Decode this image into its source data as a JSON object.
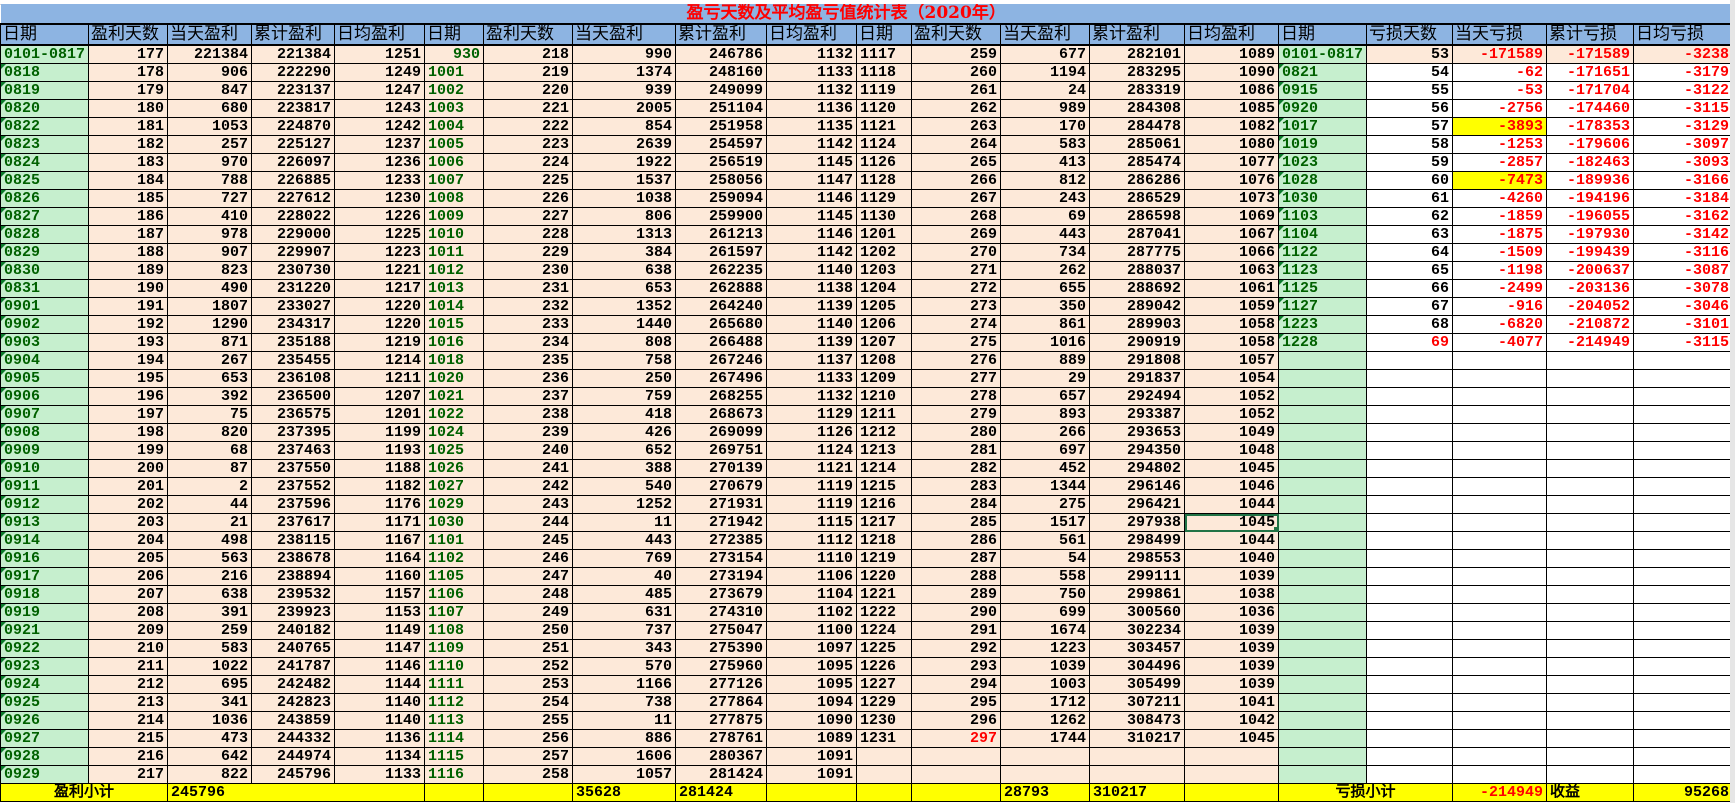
{
  "title": "盈亏天数及平均盈亏值统计表（2020年）",
  "headers": [
    "日期",
    "盈利天数",
    "当天盈利",
    "累计盈利",
    "日均盈利",
    "日期",
    "盈利天数",
    "当天盈利",
    "累计盈利",
    "日均盈利",
    "日期",
    "盈利天数",
    "当天盈利",
    "累计盈利",
    "日均盈利",
    "日期",
    "亏损天数",
    "当天亏损",
    "累计亏损",
    "日均亏损"
  ],
  "profit_block_1": [
    [
      "0101-0817",
      "177",
      "221384",
      "221384",
      "1251"
    ],
    [
      "0818",
      "178",
      "906",
      "222290",
      "1249"
    ],
    [
      "0819",
      "179",
      "847",
      "223137",
      "1247"
    ],
    [
      "0820",
      "180",
      "680",
      "223817",
      "1243"
    ],
    [
      "0822",
      "181",
      "1053",
      "224870",
      "1242"
    ],
    [
      "0823",
      "182",
      "257",
      "225127",
      "1237"
    ],
    [
      "0824",
      "183",
      "970",
      "226097",
      "1236"
    ],
    [
      "0825",
      "184",
      "788",
      "226885",
      "1233"
    ],
    [
      "0826",
      "185",
      "727",
      "227612",
      "1230"
    ],
    [
      "0827",
      "186",
      "410",
      "228022",
      "1226"
    ],
    [
      "0828",
      "187",
      "978",
      "229000",
      "1225"
    ],
    [
      "0829",
      "188",
      "907",
      "229907",
      "1223"
    ],
    [
      "0830",
      "189",
      "823",
      "230730",
      "1221"
    ],
    [
      "0831",
      "190",
      "490",
      "231220",
      "1217"
    ],
    [
      "0901",
      "191",
      "1807",
      "233027",
      "1220"
    ],
    [
      "0902",
      "192",
      "1290",
      "234317",
      "1220"
    ],
    [
      "0903",
      "193",
      "871",
      "235188",
      "1219"
    ],
    [
      "0904",
      "194",
      "267",
      "235455",
      "1214"
    ],
    [
      "0905",
      "195",
      "653",
      "236108",
      "1211"
    ],
    [
      "0906",
      "196",
      "392",
      "236500",
      "1207"
    ],
    [
      "0907",
      "197",
      "75",
      "236575",
      "1201"
    ],
    [
      "0908",
      "198",
      "820",
      "237395",
      "1199"
    ],
    [
      "0909",
      "199",
      "68",
      "237463",
      "1193"
    ],
    [
      "0910",
      "200",
      "87",
      "237550",
      "1188"
    ],
    [
      "0911",
      "201",
      "2",
      "237552",
      "1182"
    ],
    [
      "0912",
      "202",
      "44",
      "237596",
      "1176"
    ],
    [
      "0913",
      "203",
      "21",
      "237617",
      "1171"
    ],
    [
      "0914",
      "204",
      "498",
      "238115",
      "1167"
    ],
    [
      "0916",
      "205",
      "563",
      "238678",
      "1164"
    ],
    [
      "0917",
      "206",
      "216",
      "238894",
      "1160"
    ],
    [
      "0918",
      "207",
      "638",
      "239532",
      "1157"
    ],
    [
      "0919",
      "208",
      "391",
      "239923",
      "1153"
    ],
    [
      "0921",
      "209",
      "259",
      "240182",
      "1149"
    ],
    [
      "0922",
      "210",
      "583",
      "240765",
      "1147"
    ],
    [
      "0923",
      "211",
      "1022",
      "241787",
      "1146"
    ],
    [
      "0924",
      "212",
      "695",
      "242482",
      "1144"
    ],
    [
      "0925",
      "213",
      "341",
      "242823",
      "1140"
    ],
    [
      "0926",
      "214",
      "1036",
      "243859",
      "1140"
    ],
    [
      "0927",
      "215",
      "473",
      "244332",
      "1136"
    ],
    [
      "0928",
      "216",
      "642",
      "244974",
      "1134"
    ],
    [
      "0929",
      "217",
      "822",
      "245796",
      "1133"
    ]
  ],
  "profit_block_2": [
    [
      "930",
      "218",
      "990",
      "246786",
      "1132"
    ],
    [
      "1001",
      "219",
      "1374",
      "248160",
      "1133"
    ],
    [
      "1002",
      "220",
      "939",
      "249099",
      "1132"
    ],
    [
      "1003",
      "221",
      "2005",
      "251104",
      "1136"
    ],
    [
      "1004",
      "222",
      "854",
      "251958",
      "1135"
    ],
    [
      "1005",
      "223",
      "2639",
      "254597",
      "1142"
    ],
    [
      "1006",
      "224",
      "1922",
      "256519",
      "1145"
    ],
    [
      "1007",
      "225",
      "1537",
      "258056",
      "1147"
    ],
    [
      "1008",
      "226",
      "1038",
      "259094",
      "1146"
    ],
    [
      "1009",
      "227",
      "806",
      "259900",
      "1145"
    ],
    [
      "1010",
      "228",
      "1313",
      "261213",
      "1146"
    ],
    [
      "1011",
      "229",
      "384",
      "261597",
      "1142"
    ],
    [
      "1012",
      "230",
      "638",
      "262235",
      "1140"
    ],
    [
      "1013",
      "231",
      "653",
      "262888",
      "1138"
    ],
    [
      "1014",
      "232",
      "1352",
      "264240",
      "1139"
    ],
    [
      "1015",
      "233",
      "1440",
      "265680",
      "1140"
    ],
    [
      "1016",
      "234",
      "808",
      "266488",
      "1139"
    ],
    [
      "1018",
      "235",
      "758",
      "267246",
      "1137"
    ],
    [
      "1020",
      "236",
      "250",
      "267496",
      "1133"
    ],
    [
      "1021",
      "237",
      "759",
      "268255",
      "1132"
    ],
    [
      "1022",
      "238",
      "418",
      "268673",
      "1129"
    ],
    [
      "1024",
      "239",
      "426",
      "269099",
      "1126"
    ],
    [
      "1025",
      "240",
      "652",
      "269751",
      "1124"
    ],
    [
      "1026",
      "241",
      "388",
      "270139",
      "1121"
    ],
    [
      "1027",
      "242",
      "540",
      "270679",
      "1119"
    ],
    [
      "1029",
      "243",
      "1252",
      "271931",
      "1119"
    ],
    [
      "1030",
      "244",
      "11",
      "271942",
      "1115"
    ],
    [
      "1101",
      "245",
      "443",
      "272385",
      "1112"
    ],
    [
      "1102",
      "246",
      "769",
      "273154",
      "1110"
    ],
    [
      "1105",
      "247",
      "40",
      "273194",
      "1106"
    ],
    [
      "1106",
      "248",
      "485",
      "273679",
      "1104"
    ],
    [
      "1107",
      "249",
      "631",
      "274310",
      "1102"
    ],
    [
      "1108",
      "250",
      "737",
      "275047",
      "1100"
    ],
    [
      "1109",
      "251",
      "343",
      "275390",
      "1097"
    ],
    [
      "1110",
      "252",
      "570",
      "275960",
      "1095"
    ],
    [
      "1111",
      "253",
      "1166",
      "277126",
      "1095"
    ],
    [
      "1112",
      "254",
      "738",
      "277864",
      "1094"
    ],
    [
      "1113",
      "255",
      "11",
      "277875",
      "1090"
    ],
    [
      "1114",
      "256",
      "886",
      "278761",
      "1089"
    ],
    [
      "1115",
      "257",
      "1606",
      "280367",
      "1091"
    ],
    [
      "1116",
      "258",
      "1057",
      "281424",
      "1091"
    ]
  ],
  "profit_block_3": [
    [
      "1117",
      "259",
      "677",
      "282101",
      "1089"
    ],
    [
      "1118",
      "260",
      "1194",
      "283295",
      "1090"
    ],
    [
      "1119",
      "261",
      "24",
      "283319",
      "1086"
    ],
    [
      "1120",
      "262",
      "989",
      "284308",
      "1085"
    ],
    [
      "1121",
      "263",
      "170",
      "284478",
      "1082"
    ],
    [
      "1124",
      "264",
      "583",
      "285061",
      "1080"
    ],
    [
      "1126",
      "265",
      "413",
      "285474",
      "1077"
    ],
    [
      "1128",
      "266",
      "812",
      "286286",
      "1076"
    ],
    [
      "1129",
      "267",
      "243",
      "286529",
      "1073"
    ],
    [
      "1130",
      "268",
      "69",
      "286598",
      "1069"
    ],
    [
      "1201",
      "269",
      "443",
      "287041",
      "1067"
    ],
    [
      "1202",
      "270",
      "734",
      "287775",
      "1066"
    ],
    [
      "1203",
      "271",
      "262",
      "288037",
      "1063"
    ],
    [
      "1204",
      "272",
      "655",
      "288692",
      "1061"
    ],
    [
      "1205",
      "273",
      "350",
      "289042",
      "1059"
    ],
    [
      "1206",
      "274",
      "861",
      "289903",
      "1058"
    ],
    [
      "1207",
      "275",
      "1016",
      "290919",
      "1058"
    ],
    [
      "1208",
      "276",
      "889",
      "291808",
      "1057"
    ],
    [
      "1209",
      "277",
      "29",
      "291837",
      "1054"
    ],
    [
      "1210",
      "278",
      "657",
      "292494",
      "1052"
    ],
    [
      "1211",
      "279",
      "893",
      "293387",
      "1052"
    ],
    [
      "1212",
      "280",
      "266",
      "293653",
      "1049"
    ],
    [
      "1213",
      "281",
      "697",
      "294350",
      "1048"
    ],
    [
      "1214",
      "282",
      "452",
      "294802",
      "1045"
    ],
    [
      "1215",
      "283",
      "1344",
      "296146",
      "1046"
    ],
    [
      "1216",
      "284",
      "275",
      "296421",
      "1044"
    ],
    [
      "1217",
      "285",
      "1517",
      "297938",
      "1045"
    ],
    [
      "1218",
      "286",
      "561",
      "298499",
      "1044"
    ],
    [
      "1219",
      "287",
      "54",
      "298553",
      "1040"
    ],
    [
      "1220",
      "288",
      "558",
      "299111",
      "1039"
    ],
    [
      "1221",
      "289",
      "750",
      "299861",
      "1038"
    ],
    [
      "1222",
      "290",
      "699",
      "300560",
      "1036"
    ],
    [
      "1224",
      "291",
      "1674",
      "302234",
      "1039"
    ],
    [
      "1225",
      "292",
      "1223",
      "303457",
      "1039"
    ],
    [
      "1226",
      "293",
      "1039",
      "304496",
      "1039"
    ],
    [
      "1227",
      "294",
      "1003",
      "305499",
      "1039"
    ],
    [
      "1229",
      "295",
      "1712",
      "307211",
      "1041"
    ],
    [
      "1230",
      "296",
      "1262",
      "308473",
      "1042"
    ],
    [
      "1231",
      "297",
      "1744",
      "310217",
      "1045"
    ],
    [
      "",
      "",
      "",
      "",
      ""
    ],
    [
      "",
      "",
      "",
      "",
      ""
    ]
  ],
  "loss_block": [
    [
      "0101-0817",
      "53",
      "-171589",
      "-171589",
      "-3238"
    ],
    [
      "0821",
      "54",
      "-62",
      "-171651",
      "-3179"
    ],
    [
      "0915",
      "55",
      "-53",
      "-171704",
      "-3122"
    ],
    [
      "0920",
      "56",
      "-2756",
      "-174460",
      "-3115"
    ],
    [
      "1017",
      "57",
      "-3893",
      "-178353",
      "-3129"
    ],
    [
      "1019",
      "58",
      "-1253",
      "-179606",
      "-3097"
    ],
    [
      "1023",
      "59",
      "-2857",
      "-182463",
      "-3093"
    ],
    [
      "1028",
      "60",
      "-7473",
      "-189936",
      "-3166"
    ],
    [
      "1030",
      "61",
      "-4260",
      "-194196",
      "-3184"
    ],
    [
      "1103",
      "62",
      "-1859",
      "-196055",
      "-3162"
    ],
    [
      "1104",
      "63",
      "-1875",
      "-197930",
      "-3142"
    ],
    [
      "1122",
      "64",
      "-1509",
      "-199439",
      "-3116"
    ],
    [
      "1123",
      "65",
      "-1198",
      "-200637",
      "-3087"
    ],
    [
      "1125",
      "66",
      "-2499",
      "-203136",
      "-3078"
    ],
    [
      "1127",
      "67",
      "-916",
      "-204052",
      "-3046"
    ],
    [
      "1223",
      "68",
      "-6820",
      "-210872",
      "-3101"
    ],
    [
      "1228",
      "69",
      "-4077",
      "-214949",
      "-3115"
    ]
  ],
  "subtotal": {
    "profit_label": "盈利小计",
    "profit_block_1_total": "245796",
    "profit_block_2_sum": "35628",
    "profit_block_2_total": "281424",
    "profit_block_3_sum": "28793",
    "profit_block_3_total": "310217",
    "loss_label": "亏损小计",
    "loss_total": "-214949",
    "income_label": "收益",
    "income_value": "95268"
  },
  "colors": {
    "header_bg": "#8db4e2",
    "title_text": "#ff0000",
    "data_bg": "#fde9d9",
    "date_bg": "#c6efce",
    "date_text": "#006100",
    "highlight": "#ffff00",
    "loss_text": "#ff0000",
    "selection": "#217346"
  }
}
